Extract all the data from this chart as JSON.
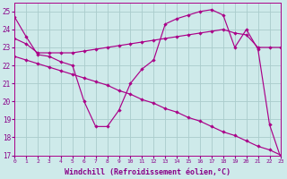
{
  "x": [
    0,
    1,
    2,
    3,
    4,
    5,
    6,
    7,
    8,
    9,
    10,
    11,
    12,
    13,
    14,
    15,
    16,
    17,
    18,
    19,
    20,
    21,
    22,
    23
  ],
  "line1": [
    24.7,
    23.6,
    22.6,
    22.5,
    22.2,
    22.0,
    20.0,
    18.6,
    18.6,
    19.5,
    21.0,
    21.8,
    22.3,
    24.3,
    24.6,
    24.8,
    25.0,
    25.1,
    24.8,
    23.0,
    24.0,
    22.9,
    18.7,
    16.8
  ],
  "line2": [
    23.5,
    23.2,
    22.7,
    22.7,
    22.7,
    22.7,
    22.8,
    22.9,
    23.0,
    23.1,
    23.2,
    23.3,
    23.4,
    23.5,
    23.6,
    23.7,
    23.8,
    23.9,
    24.0,
    23.8,
    23.7,
    23.0,
    23.0,
    23.0
  ],
  "line3": [
    22.5,
    22.3,
    22.1,
    21.9,
    21.7,
    21.5,
    21.3,
    21.1,
    20.9,
    20.6,
    20.4,
    20.1,
    19.9,
    19.6,
    19.4,
    19.1,
    18.9,
    18.6,
    18.3,
    18.1,
    17.8,
    17.5,
    17.3,
    17.0
  ],
  "line_color": "#aa0088",
  "bg_color": "#ceeaea",
  "grid_color": "#aacccc",
  "xlabel": "Windchill (Refroidissement éolien,°C)",
  "xlabel_color": "#880088",
  "tick_color": "#880088",
  "ylim_min": 17,
  "ylim_max": 25.5,
  "xlim_min": 0,
  "xlim_max": 23
}
